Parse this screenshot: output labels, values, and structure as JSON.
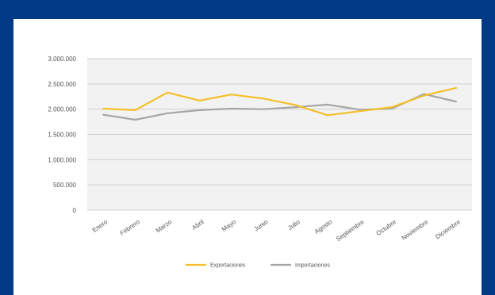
{
  "colors": {
    "background": "#003a86",
    "panel": "#ffffff",
    "plot_area": "#f2f2f2",
    "grid": "#cfcfcf",
    "exportaciones": "#f5bf2b",
    "importaciones": "#a6a6a6"
  },
  "chart_data": {
    "type": "line",
    "title": "",
    "xlabel": "",
    "ylabel": "",
    "x": [
      "Enero",
      "Febrero",
      "Marzo",
      "Abril",
      "Mayo",
      "Junio",
      "Julio",
      "Agosto",
      "Septiembre",
      "Octubre",
      "Noviembre",
      "Diciembre"
    ],
    "y_ticks": [
      "0",
      "500.000",
      "1.000.000",
      "1.500.000",
      "2.000.000",
      "2.500.000",
      "3.000.000"
    ],
    "ylim": [
      0,
      3000000
    ],
    "grid": true,
    "legend_position": "bottom",
    "series": [
      {
        "name": "Exportaciones",
        "color": "#f5bf2b",
        "values": [
          2010000,
          1980000,
          2330000,
          2170000,
          2290000,
          2210000,
          2080000,
          1880000,
          1960000,
          2040000,
          2270000,
          2420000
        ]
      },
      {
        "name": "Importaciones",
        "color": "#a6a6a6",
        "values": [
          1890000,
          1790000,
          1920000,
          1980000,
          2010000,
          2000000,
          2040000,
          2090000,
          1990000,
          2010000,
          2300000,
          2150000
        ]
      }
    ]
  }
}
